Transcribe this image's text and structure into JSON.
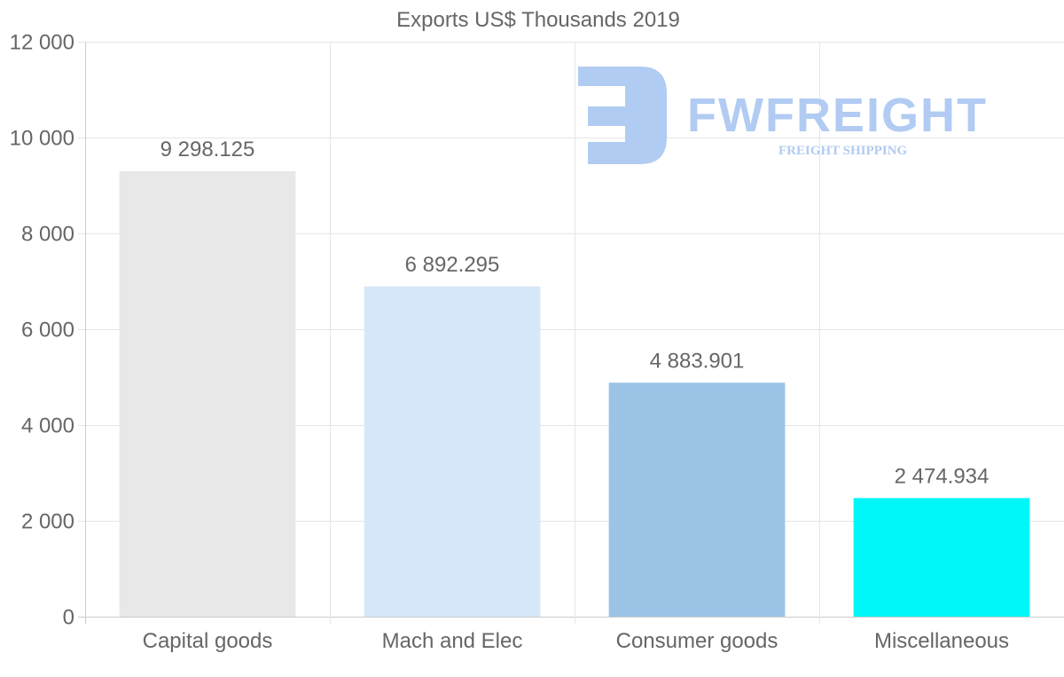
{
  "chart_data": {
    "type": "bar",
    "title": "Exports US$ Thousands 2019",
    "xlabel": "",
    "ylabel": "",
    "categories": [
      "Capital goods",
      "Mach and Elec",
      "Consumer goods",
      "Miscellaneous"
    ],
    "values": [
      9298.125,
      6892.295,
      4883.901,
      2474.934
    ],
    "value_labels": [
      "9 298.125",
      "6 892.295",
      "4 883.901",
      "2 474.934"
    ],
    "colors": [
      "#e8e8e8",
      "#d6e7f9",
      "#9bc3e6",
      "#00f7f7"
    ],
    "ylim": [
      0,
      12000
    ],
    "yticks": [
      0,
      2000,
      4000,
      6000,
      8000,
      10000,
      12000
    ],
    "ytick_labels": [
      "0",
      "2 000",
      "4 000",
      "6 000",
      "8 000",
      "10 000",
      "12 000"
    ],
    "grid": true,
    "legend": "none"
  },
  "watermark": {
    "brand": "FWFREIGHT",
    "tagline": "FREIGHT SHIPPING",
    "color": "#a9c6f2"
  }
}
